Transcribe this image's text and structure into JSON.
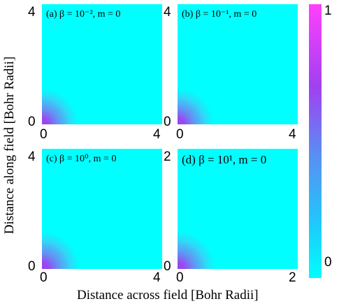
{
  "chart_data": [
    {
      "type": "heatmap",
      "panel_label": "(a) β = 10⁻², m = 0",
      "beta": 0.01,
      "m": 0,
      "xlim": [
        0,
        4
      ],
      "ylim": [
        0,
        4
      ],
      "x_ticks": [
        "0",
        "4"
      ],
      "y_ticks": [
        "0",
        "4"
      ],
      "decay": 1.15
    },
    {
      "type": "heatmap",
      "panel_label": "(b) β = 10⁻¹, m = 0",
      "beta": 0.1,
      "m": 0,
      "xlim": [
        0,
        4
      ],
      "ylim": [
        0,
        4
      ],
      "x_ticks": [
        "0",
        "4"
      ],
      "y_ticks": [
        "0",
        "4"
      ],
      "decay": 1.15
    },
    {
      "type": "heatmap",
      "panel_label": "(c) β = 10⁰, m = 0",
      "beta": 1,
      "m": 0,
      "xlim": [
        0,
        4
      ],
      "ylim": [
        0,
        4
      ],
      "x_ticks": [
        "0",
        "4"
      ],
      "y_ticks": [
        "0",
        "4"
      ],
      "decay": 1.2
    },
    {
      "type": "heatmap",
      "panel_label": "(d) β = 10¹, m = 0",
      "beta": 10,
      "m": 0,
      "xlim": [
        0,
        2
      ],
      "ylim": [
        0,
        2
      ],
      "x_ticks": [
        "0",
        "2"
      ],
      "y_ticks": [
        "0",
        "2"
      ],
      "decay": 0.6
    }
  ],
  "axes": {
    "xlabel": "Distance across field [Bohr Radii]",
    "ylabel": "Distance along field [Bohr Radii]"
  },
  "colorbar": {
    "min_label": "0",
    "max_label": "1",
    "min_color": "#00ffff",
    "mid_color": "#a040f0",
    "max_color": "#ff40ff"
  }
}
